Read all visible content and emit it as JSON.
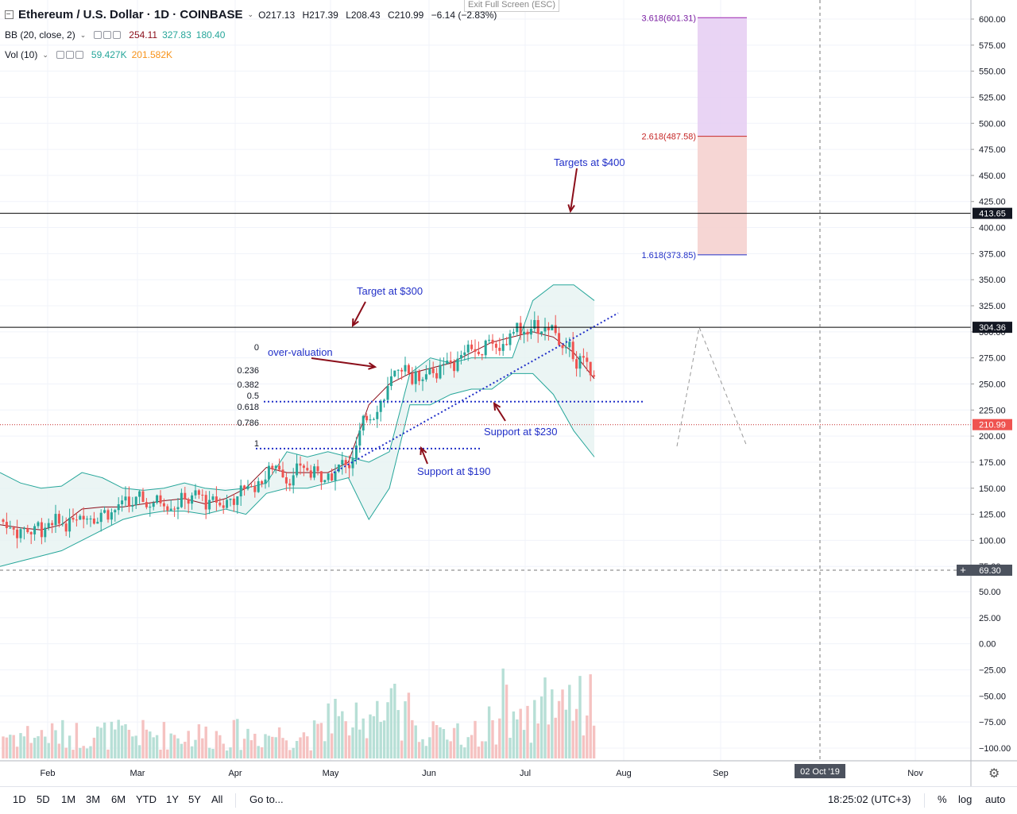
{
  "exit_fullscreen": "Exit Full Screen (ESC)",
  "header": {
    "symbol_title": "Ethereum / U.S. Dollar · 1D · COINBASE",
    "open": "O217.13",
    "high": "H217.39",
    "low": "L208.43",
    "close": "C210.99",
    "change": "−6.14 (−2.83%)"
  },
  "indicators": {
    "bb": {
      "label": "BB (20, close, 2)",
      "v1": "254.11",
      "v2": "327.83",
      "v3": "180.40"
    },
    "vol": {
      "label": "Vol (10)",
      "v1": "59.427K",
      "v2": "201.582K"
    }
  },
  "price_axis": [
    "600.00",
    "575.00",
    "550.00",
    "525.00",
    "500.00",
    "475.00",
    "450.00",
    "425.00",
    "400.00",
    "375.00",
    "350.00",
    "325.00",
    "300.00",
    "275.00",
    "250.00",
    "225.00",
    "200.00",
    "175.00",
    "150.00",
    "125.00",
    "100.00",
    "75.00"
  ],
  "volume_axis": [
    "50.00",
    "25.00",
    "0.00",
    "−25.00",
    "−50.00",
    "−75.00",
    "−100.00"
  ],
  "price_tags": {
    "res_upper": "413.65",
    "res_lower": "304.36",
    "last": "210.99",
    "crosshair": "69.30"
  },
  "time_axis": [
    "Feb",
    "Mar",
    "Apr",
    "May",
    "Jun",
    "Jul",
    "Aug",
    "Sep",
    "Nov"
  ],
  "crosshair_date": "02 Oct '19",
  "fib_extension": {
    "l1": "3.618(601.31)",
    "l2": "2.618(487.58)",
    "l3": "1.618(373.85)"
  },
  "fib_retrace": [
    "0",
    "0.236",
    "0.382",
    "0.5",
    "0.618",
    "0.786",
    "1"
  ],
  "annotations": {
    "targets400": "Targets at $400",
    "target300": "Target at $300",
    "overvaluation": "over-valuation",
    "support230": "Support at $230",
    "support190": "Support at $190"
  },
  "toolbar": {
    "ranges": [
      "1D",
      "5D",
      "1M",
      "3M",
      "6M",
      "YTD",
      "1Y",
      "5Y",
      "All"
    ],
    "goto": "Go to...",
    "clock": "18:25:02 (UTC+3)",
    "percent": "%",
    "log": "log",
    "auto": "auto"
  },
  "colors": {
    "up": "#26a69a",
    "down": "#ef5350",
    "bb_fill": "#e6f3f1",
    "annotation": "#2230c8",
    "arrow": "#8b0e1a",
    "fib_purple": "#e5cdf2",
    "fib_red": "#f5d2cf"
  },
  "chart_data": {
    "type": "candlestick",
    "title": "Ethereum / U.S. Dollar · 1D · COINBASE",
    "ylim": [
      75,
      610
    ],
    "volume_ylim": [
      -110,
      60
    ],
    "x_months": [
      "Feb",
      "Mar",
      "Apr",
      "May",
      "Jun",
      "Jul",
      "Aug",
      "Sep",
      "Oct",
      "Nov"
    ],
    "horizontal_levels": [
      413.65,
      304.36,
      210.99
    ],
    "fib_extension_levels": [
      601.31,
      487.58,
      373.85
    ],
    "bollinger_approx": {
      "upper": [
        165,
        155,
        150,
        152,
        165,
        160,
        150,
        148,
        150,
        155,
        150,
        148,
        150,
        155,
        185,
        180,
        185,
        180,
        175,
        185,
        260,
        275,
        270,
        275,
        275,
        275,
        330,
        345,
        345,
        330
      ],
      "middle": [
        115,
        112,
        110,
        115,
        130,
        132,
        132,
        135,
        138,
        140,
        135,
        140,
        150,
        170,
        165,
        165,
        165,
        175,
        230,
        250,
        260,
        265,
        270,
        280,
        290,
        295,
        300,
        295,
        280,
        255
      ],
      "lower": [
        75,
        80,
        85,
        90,
        100,
        110,
        120,
        125,
        128,
        128,
        125,
        130,
        125,
        145,
        150,
        150,
        155,
        160,
        120,
        150,
        230,
        230,
        240,
        245,
        245,
        260,
        260,
        240,
        205,
        180
      ]
    }
  }
}
